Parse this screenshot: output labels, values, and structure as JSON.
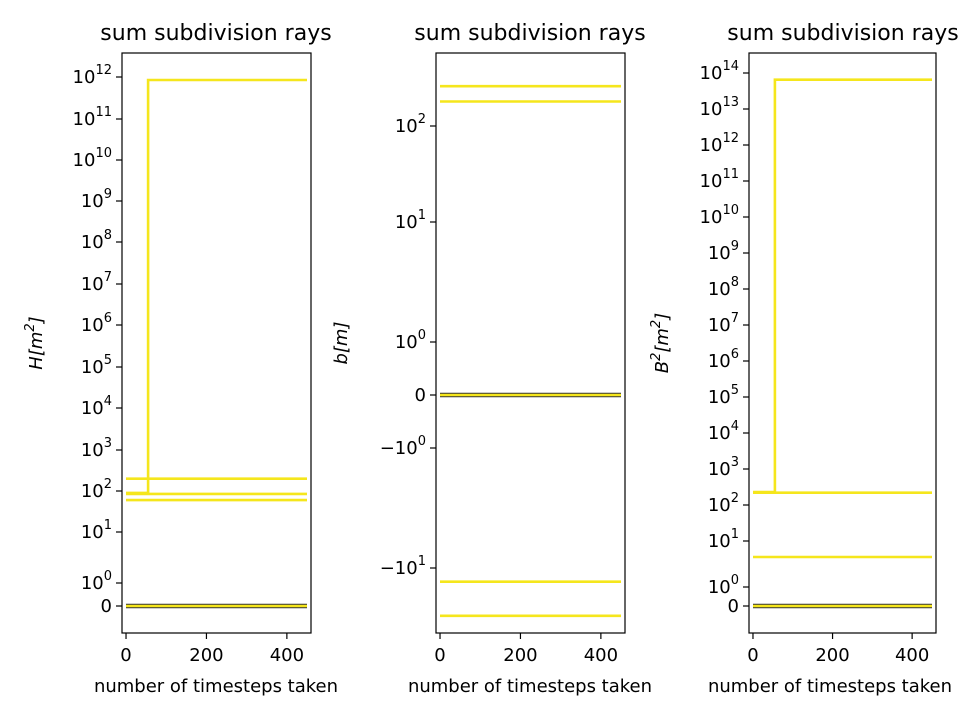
{
  "chart_data": [
    {
      "type": "line",
      "title": "sum subdivision rays",
      "xlabel": "number of timesteps taken",
      "ylabel": {
        "base": "H[m",
        "sup": "2",
        "tail": "]"
      },
      "xlim": [
        -10,
        460
      ],
      "xticks": [
        "0",
        "200",
        "400"
      ],
      "yscale": "symlog",
      "yticks": [
        {
          "label": "0"
        },
        {
          "label": "10",
          "sup": "0"
        },
        {
          "label": "10",
          "sup": "1"
        },
        {
          "label": "10",
          "sup": "2"
        },
        {
          "label": "10",
          "sup": "3"
        },
        {
          "label": "10",
          "sup": "4"
        },
        {
          "label": "10",
          "sup": "5"
        },
        {
          "label": "10",
          "sup": "6"
        },
        {
          "label": "10",
          "sup": "7"
        },
        {
          "label": "10",
          "sup": "8"
        },
        {
          "label": "10",
          "sup": "9"
        },
        {
          "label": "10",
          "sup": "10"
        },
        {
          "label": "10",
          "sup": "11"
        },
        {
          "label": "10",
          "sup": "12"
        }
      ],
      "series_color": "#f5e61c",
      "series": [
        {
          "x": [
            0,
            55,
            55,
            450
          ],
          "y": [
            90,
            90,
            850000000000.0,
            850000000000.0
          ]
        },
        {
          "x": [
            0,
            450
          ],
          "y": [
            200,
            200
          ]
        },
        {
          "x": [
            0,
            450
          ],
          "y": [
            85,
            85
          ]
        },
        {
          "x": [
            0,
            450
          ],
          "y": [
            60,
            60
          ]
        },
        {
          "x": [
            0,
            450
          ],
          "y": [
            0,
            0
          ]
        }
      ]
    },
    {
      "type": "line",
      "title": "sum subdivision rays",
      "xlabel": "number of timesteps taken",
      "ylabel": {
        "base": "b[m]",
        "sup": "",
        "tail": ""
      },
      "xlim": [
        -10,
        460
      ],
      "xticks": [
        "0",
        "200",
        "400"
      ],
      "yscale": "symlog",
      "yticks": [
        {
          "label": "−10",
          "sup": "1"
        },
        {
          "label": "−10",
          "sup": "0"
        },
        {
          "label": "0"
        },
        {
          "label": "10",
          "sup": "0"
        },
        {
          "label": "10",
          "sup": "1"
        },
        {
          "label": "10",
          "sup": "2"
        }
      ],
      "series_color": "#f5e61c",
      "series": [
        {
          "x": [
            0,
            450
          ],
          "y": [
            260,
            260
          ]
        },
        {
          "x": [
            0,
            450
          ],
          "y": [
            180,
            180
          ]
        },
        {
          "x": [
            0,
            450
          ],
          "y": [
            0,
            0
          ]
        },
        {
          "x": [
            0,
            450
          ],
          "y": [
            -13,
            -13
          ]
        },
        {
          "x": [
            0,
            450
          ],
          "y": [
            -25,
            -25
          ]
        }
      ]
    },
    {
      "type": "line",
      "title": "sum subdivision rays",
      "xlabel": "number of timesteps taken",
      "ylabel": {
        "base": "B",
        "sup": "2",
        "tail": "[m",
        "sup2": "2",
        "tail2": "]"
      },
      "xlim": [
        -10,
        460
      ],
      "xticks": [
        "0",
        "200",
        "400"
      ],
      "yscale": "symlog",
      "yticks": [
        {
          "label": "0"
        },
        {
          "label": "10",
          "sup": "0"
        },
        {
          "label": "10",
          "sup": "1"
        },
        {
          "label": "10",
          "sup": "2"
        },
        {
          "label": "10",
          "sup": "3"
        },
        {
          "label": "10",
          "sup": "4"
        },
        {
          "label": "10",
          "sup": "5"
        },
        {
          "label": "10",
          "sup": "6"
        },
        {
          "label": "10",
          "sup": "7"
        },
        {
          "label": "10",
          "sup": "8"
        },
        {
          "label": "10",
          "sup": "9"
        },
        {
          "label": "10",
          "sup": "10"
        },
        {
          "label": "10",
          "sup": "11"
        },
        {
          "label": "10",
          "sup": "12"
        },
        {
          "label": "10",
          "sup": "13"
        },
        {
          "label": "10",
          "sup": "14"
        }
      ],
      "series_color": "#f5e61c",
      "series": [
        {
          "x": [
            0,
            55,
            55,
            450
          ],
          "y": [
            230,
            230,
            65000000000000.0,
            65000000000000.0
          ]
        },
        {
          "x": [
            0,
            450
          ],
          "y": [
            220,
            220
          ]
        },
        {
          "x": [
            0,
            450
          ],
          "y": [
            4.5,
            4.5
          ]
        },
        {
          "x": [
            0,
            450
          ],
          "y": [
            0,
            0
          ]
        }
      ]
    }
  ]
}
